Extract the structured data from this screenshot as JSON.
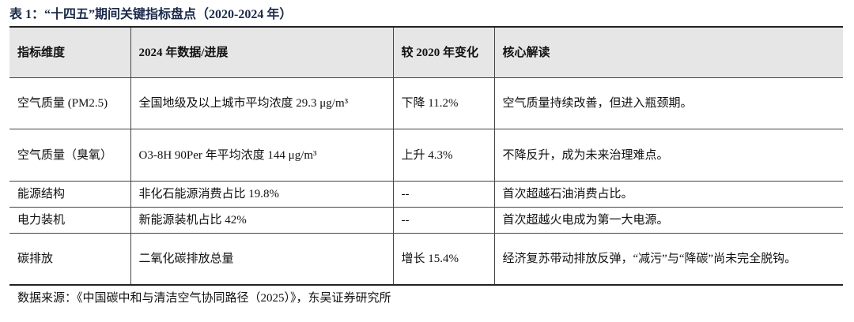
{
  "title": "表 1：“十四五”期间关键指标盘点（2020-2024 年）",
  "table": {
    "header": [
      "指标维度",
      "2024 年数据/进展",
      "较 2020 年变化",
      "核心解读"
    ],
    "rows": [
      [
        "空气质量 (PM2.5)",
        "全国地级及以上城市平均浓度 29.3 μg/m³",
        "下降 11.2%",
        "空气质量持续改善，但进入瓶颈期。"
      ],
      [
        "空气质量（臭氧）",
        "O3-8H 90Per 年平均浓度 144 μg/m³",
        "上升 4.3%",
        "不降反升，成为未来治理难点。"
      ],
      [
        "能源结构",
        "非化石能源消费占比 19.8%",
        "--",
        "首次超越石油消费占比。"
      ],
      [
        "电力装机",
        "新能源装机占比 42%",
        "--",
        "首次超越火电成为第一大电源。"
      ],
      [
        "碳排放",
        "二氧化碳排放总量",
        "增长 15.4%",
        "经济复苏带动排放反弹，“减污”与“降碳”尚未完全脱钩。"
      ]
    ]
  },
  "source": "数据来源：《中国碳中和与清洁空气协同路径（2025）》，东吴证券研究所"
}
